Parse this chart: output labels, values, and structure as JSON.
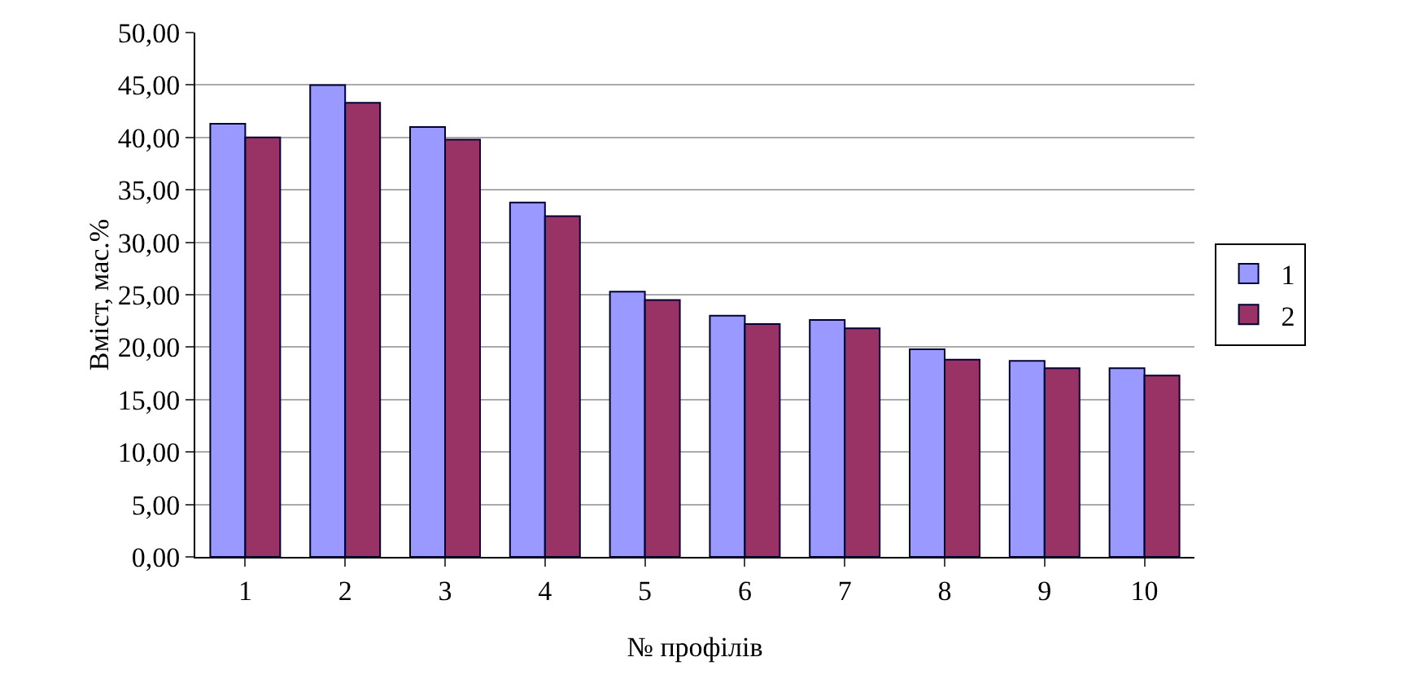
{
  "chart_data": {
    "type": "bar",
    "xlabel": "№ профілів",
    "ylabel": "Вміст, мас.%",
    "categories": [
      "1",
      "2",
      "3",
      "4",
      "5",
      "6",
      "7",
      "8",
      "9",
      "10"
    ],
    "series": [
      {
        "name": "1",
        "color": "#9999ff",
        "values": [
          41.3,
          45.0,
          41.0,
          33.8,
          25.3,
          23.0,
          22.6,
          19.8,
          18.7,
          18.0
        ]
      },
      {
        "name": "2",
        "color": "#993366",
        "values": [
          40.0,
          43.3,
          39.8,
          32.5,
          24.5,
          22.2,
          21.8,
          18.8,
          18.0,
          17.3
        ]
      }
    ],
    "ylim": [
      0,
      50
    ],
    "yticks": [
      {
        "value": 0,
        "label": "0,00"
      },
      {
        "value": 5,
        "label": "5,00"
      },
      {
        "value": 10,
        "label": "10,00"
      },
      {
        "value": 15,
        "label": "15,00"
      },
      {
        "value": 20,
        "label": "20,00"
      },
      {
        "value": 25,
        "label": "25,00"
      },
      {
        "value": 30,
        "label": "30,00"
      },
      {
        "value": 35,
        "label": "35,00"
      },
      {
        "value": 40,
        "label": "40,00"
      },
      {
        "value": 45,
        "label": "45,00"
      },
      {
        "value": 50,
        "label": "50,00"
      }
    ],
    "grid": "y",
    "legend": "right"
  }
}
